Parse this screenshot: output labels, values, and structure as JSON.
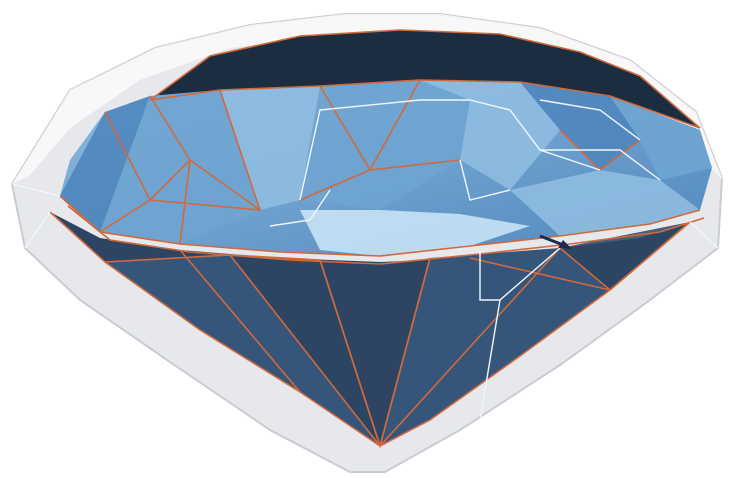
{
  "figure": {
    "subject": "gemstone-3d-render",
    "colors": {
      "background": "#ffffff",
      "shell_fill": "#e4e6ea",
      "shell_edge": "#ffffff",
      "pavilion_dark": "#2d4563",
      "pavilion_mid": "#35557a",
      "table_dark": "#1c2d40",
      "crown_light": "#8fbde0",
      "crown_mid": "#6fa4d2",
      "crown_deep": "#4f86bd",
      "highlight": "#cde7f8",
      "facet_line_orange": "#d06a3c",
      "facet_line_white": "#f2f6fa",
      "arrow": "#1e2a55"
    },
    "annotations": [
      {
        "kind": "arrow-marker",
        "icon": "arrow-icon"
      }
    ]
  }
}
